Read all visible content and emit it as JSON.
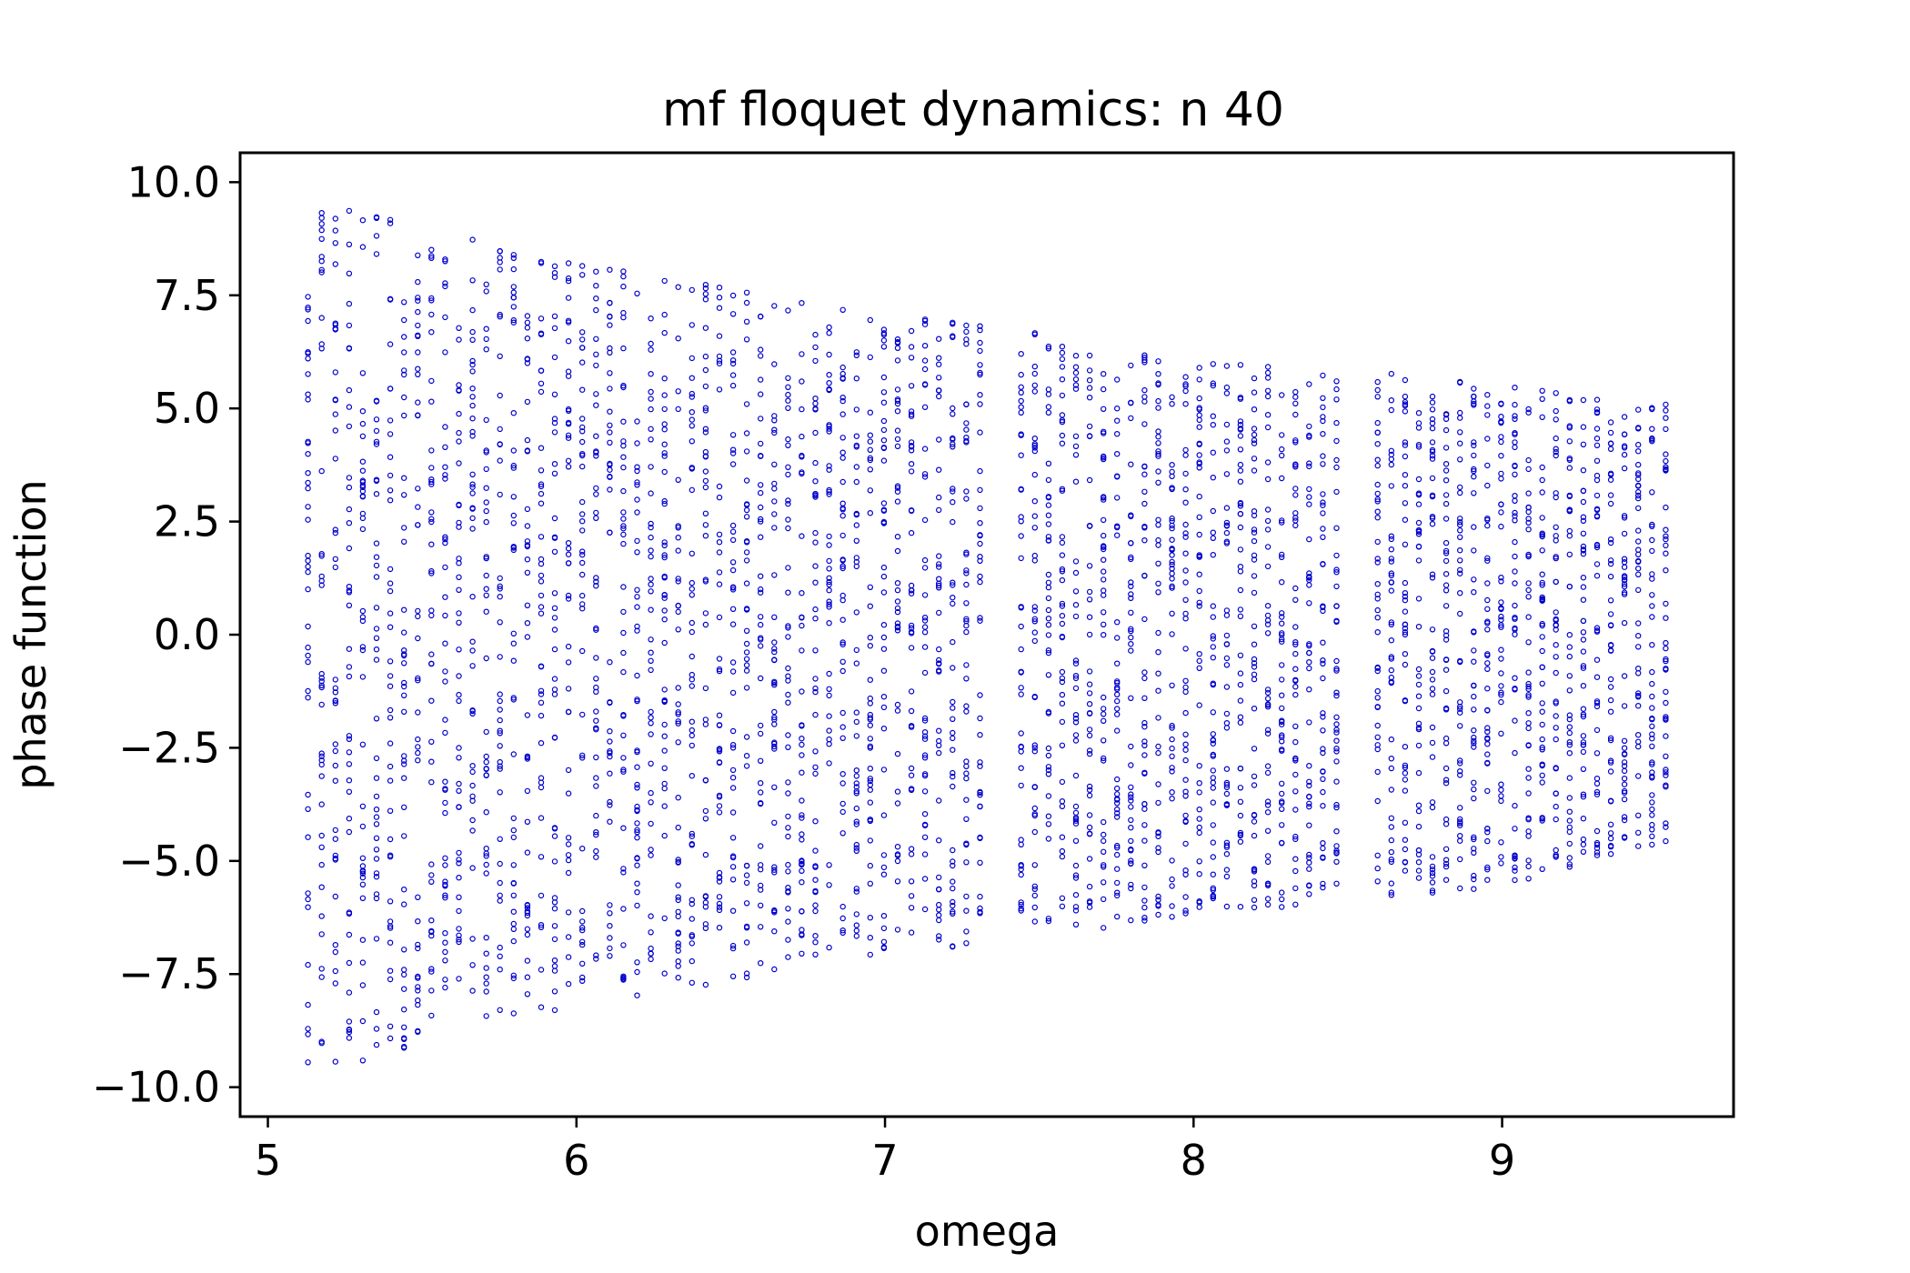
{
  "chart_data": {
    "type": "scatter",
    "title": "mf floquet dynamics: n 40",
    "xlabel": "omega",
    "ylabel": "phase function",
    "xlim": [
      4.91,
      9.75
    ],
    "ylim": [
      -10.65,
      10.65
    ],
    "xticks": [
      5,
      6,
      7,
      8,
      9
    ],
    "xtick_labels": [
      "5",
      "6",
      "7",
      "8",
      "9"
    ],
    "yticks": [
      10.0,
      7.5,
      5.0,
      2.5,
      0.0,
      -2.5,
      -5.0,
      -7.5,
      -10.0
    ],
    "ytick_labels": [
      "10.0",
      "7.5",
      "5.0",
      "2.5",
      "0.0",
      "−2.5",
      "−5.0",
      "−7.5",
      "−10.0"
    ],
    "grid": false,
    "legend": "none",
    "marker": "open-circle",
    "series_color": "#0000cc",
    "series": [
      {
        "x_range": [
          5.13,
          9.53
        ],
        "omega_steps": 100,
        "points_per_omega": 40,
        "envelope": [
          {
            "omega": 5.13,
            "ymin": -9.7,
            "ymax": 9.6
          },
          {
            "omega": 6.0,
            "ymin": -8.3,
            "ymax": 8.2
          },
          {
            "omega": 7.0,
            "ymin": -7.1,
            "ymax": 7.1
          },
          {
            "omega": 7.5,
            "ymin": -6.7,
            "ymax": 6.7
          },
          {
            "omega": 8.0,
            "ymin": -6.2,
            "ymax": 6.0
          },
          {
            "omega": 8.5,
            "ymin": -5.9,
            "ymax": 5.9
          },
          {
            "omega": 9.0,
            "ymin": -5.6,
            "ymax": 5.5
          },
          {
            "omega": 9.53,
            "ymin": -4.6,
            "ymax": 5.1
          }
        ],
        "gaps": [
          [
            7.35,
            7.42
          ],
          [
            8.5,
            8.58
          ]
        ]
      }
    ]
  }
}
